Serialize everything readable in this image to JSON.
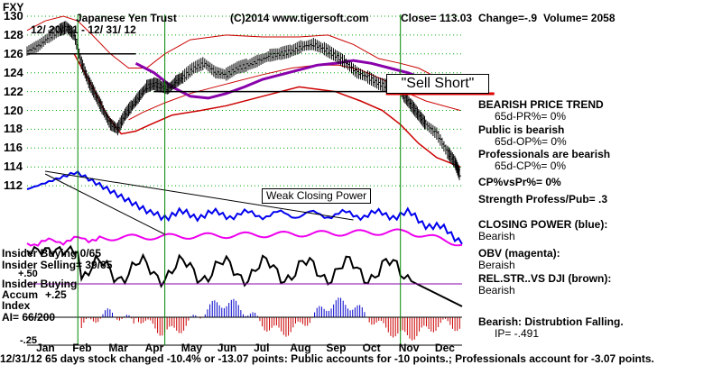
{
  "header": {
    "ticker": "FXY",
    "name": "Japanese Yen Trust",
    "date_range": "12/ 20/ 11 - 12/ 31/ 12",
    "copyright": "(C)2014 www.tigersoft.com",
    "close": "Close= 113.03",
    "change": "Change=-.9",
    "volume": "Volume= 2058"
  },
  "annotations": {
    "sell_short": "\"Sell Short\"",
    "weak_closing_power": "Weak Closing Power"
  },
  "left_labels": {
    "insider_buying_ratio": "Insider Buying  0/65",
    "insider_selling_ratio": "Insider Selling= 39/65",
    "plus50": "+.50",
    "insider_buying": "Insider Buying",
    "accum": "Accum",
    "plus25": "+.25",
    "index": "Index",
    "ai": "AI= 66/200",
    "minus25": "-.25"
  },
  "right_panel": {
    "trend_title": "BEARISH PRICE TREND",
    "trend_value": "65d-PR%= 0%",
    "public_title": "Public is bearish",
    "public_value": "65d-OP%= 0%",
    "pros_title": "Professionals are bearish",
    "pros_value": "65d-CP%= 0%",
    "cpvspr": "CP%vsPr%=  0%",
    "strength": "Strength Profess/Pub= .3",
    "cp_title": "CLOSING POWER (blue):",
    "cp_value": "Bearish",
    "obv_title": "OBV (magenta):",
    "obv_value": "Beraish",
    "rs_title": "REL.STR..VS DJI (brown):",
    "rs_value": "Bearish",
    "bearish_title": "Bearish:  Distrubtion Falling.",
    "ip_value": "IP= -.491"
  },
  "footer": "12/31/12  65 days stock changed -10.4% or -13.07 points:  Public accounts for -10 points.;  Professionals account for -3.07 points.",
  "colors": {
    "price_bars": "#000000",
    "bands": "#cc0000",
    "ma_purple": "#8800aa",
    "closing_power": "#0000ee",
    "obv": "#ee00ee",
    "rel_str": "#000000",
    "accum_pos": "#0000cc",
    "accum_neg": "#cc0000",
    "signal_lines": "#008800",
    "grid": "#00aa00"
  },
  "chart_data": {
    "type": "line",
    "ylim": [
      110,
      131
    ],
    "y_ticks": [
      130,
      128,
      126,
      124,
      122,
      120,
      118,
      116,
      114,
      112
    ],
    "months": [
      "Jan",
      "Feb",
      "Mar",
      "Apr",
      "May",
      "Jun",
      "Jul",
      "Aug",
      "Sep",
      "Oct",
      "Nov",
      "Dec"
    ],
    "month_pos": [
      0.5,
      1.5,
      2.5,
      3.5,
      4.5,
      5.5,
      6.5,
      7.5,
      8.5,
      9.5,
      10.5,
      11.5
    ],
    "signal_months": [
      1.4,
      3.8,
      10.3
    ],
    "sell_short_month": 10.0,
    "price_close": [
      [
        0.0,
        126.3
      ],
      [
        0.3,
        126.8
      ],
      [
        0.6,
        127.8
      ],
      [
        0.9,
        128.5
      ],
      [
        1.1,
        128.8
      ],
      [
        1.3,
        128.0
      ],
      [
        1.5,
        125.0
      ],
      [
        1.7,
        123.0
      ],
      [
        1.9,
        121.5
      ],
      [
        2.1,
        120.0
      ],
      [
        2.3,
        118.5
      ],
      [
        2.5,
        118.0
      ],
      [
        2.7,
        119.5
      ],
      [
        2.9,
        120.5
      ],
      [
        3.1,
        121.5
      ],
      [
        3.3,
        122.5
      ],
      [
        3.5,
        122.8
      ],
      [
        3.7,
        122.5
      ],
      [
        3.9,
        122.3
      ],
      [
        4.1,
        123.0
      ],
      [
        4.3,
        123.5
      ],
      [
        4.6,
        124.5
      ],
      [
        4.9,
        125.0
      ],
      [
        5.2,
        124.0
      ],
      [
        5.5,
        123.8
      ],
      [
        5.8,
        124.5
      ],
      [
        6.1,
        124.8
      ],
      [
        6.4,
        125.3
      ],
      [
        6.7,
        125.8
      ],
      [
        7.0,
        126.0
      ],
      [
        7.3,
        126.3
      ],
      [
        7.6,
        126.8
      ],
      [
        7.9,
        127.0
      ],
      [
        8.2,
        126.5
      ],
      [
        8.5,
        125.8
      ],
      [
        8.8,
        125.0
      ],
      [
        9.1,
        124.0
      ],
      [
        9.4,
        123.5
      ],
      [
        9.7,
        122.8
      ],
      [
        10.0,
        122.5
      ],
      [
        10.2,
        122.8
      ],
      [
        10.4,
        121.5
      ],
      [
        10.6,
        120.5
      ],
      [
        10.8,
        119.5
      ],
      [
        11.0,
        118.5
      ],
      [
        11.3,
        117.5
      ],
      [
        11.6,
        115.5
      ],
      [
        11.8,
        114.5
      ],
      [
        11.95,
        113.0
      ]
    ],
    "upper_band": [
      [
        0.0,
        128.5
      ],
      [
        0.5,
        129.5
      ],
      [
        1.0,
        130.0
      ],
      [
        1.4,
        129.5
      ],
      [
        1.8,
        128.0
      ],
      [
        2.3,
        126.0
      ],
      [
        2.8,
        124.5
      ],
      [
        3.3,
        124.5
      ],
      [
        3.8,
        126.0
      ],
      [
        4.5,
        127.5
      ],
      [
        5.5,
        128.0
      ],
      [
        6.5,
        127.8
      ],
      [
        7.5,
        127.8
      ],
      [
        8.3,
        128.0
      ],
      [
        9.0,
        127.0
      ],
      [
        9.7,
        125.5
      ],
      [
        10.3,
        125.0
      ],
      [
        10.8,
        124.5
      ],
      [
        11.3,
        123.5
      ],
      [
        11.95,
        122.5
      ]
    ],
    "lower_band": [
      [
        1.3,
        126.0
      ],
      [
        1.8,
        122.5
      ],
      [
        2.2,
        119.5
      ],
      [
        2.6,
        117.5
      ],
      [
        3.0,
        117.8
      ],
      [
        3.4,
        118.5
      ],
      [
        4.0,
        119.5
      ],
      [
        4.8,
        120.0
      ],
      [
        5.5,
        120.5
      ],
      [
        6.5,
        121.5
      ],
      [
        7.5,
        122.5
      ],
      [
        8.5,
        122.0
      ],
      [
        9.2,
        121.0
      ],
      [
        9.8,
        120.0
      ],
      [
        10.3,
        118.5
      ],
      [
        10.8,
        116.5
      ],
      [
        11.3,
        115.0
      ],
      [
        11.95,
        114.0
      ]
    ],
    "mid_red": [
      [
        2.8,
        119.0
      ],
      [
        3.2,
        119.8
      ],
      [
        3.8,
        120.8
      ],
      [
        4.5,
        121.8
      ],
      [
        5.5,
        122.8
      ],
      [
        6.5,
        123.8
      ],
      [
        7.3,
        124.5
      ],
      [
        8.0,
        124.8
      ],
      [
        8.6,
        124.8
      ],
      [
        9.2,
        124.3
      ],
      [
        9.8,
        123.3
      ],
      [
        10.4,
        122.0
      ],
      [
        11.0,
        121.0
      ],
      [
        11.95,
        120.0
      ]
    ],
    "ma_purple": [
      [
        3.0,
        125.0
      ],
      [
        3.5,
        124.0
      ],
      [
        4.0,
        122.5
      ],
      [
        4.5,
        121.5
      ],
      [
        5.0,
        121.3
      ],
      [
        5.5,
        121.8
      ],
      [
        6.0,
        122.5
      ],
      [
        6.5,
        123.3
      ],
      [
        7.0,
        123.8
      ],
      [
        7.5,
        124.3
      ],
      [
        8.0,
        124.8
      ],
      [
        8.5,
        125.0
      ],
      [
        9.0,
        125.3
      ],
      [
        9.5,
        125.0
      ],
      [
        10.0,
        124.5
      ],
      [
        10.5,
        124.0
      ],
      [
        11.0,
        123.3
      ],
      [
        11.95,
        122.0
      ]
    ],
    "black_levels": [
      {
        "value": 126.0,
        "from": 0.0,
        "to": 3.0
      },
      {
        "value": 122.0,
        "from": 3.5,
        "to": 11.6
      }
    ]
  }
}
